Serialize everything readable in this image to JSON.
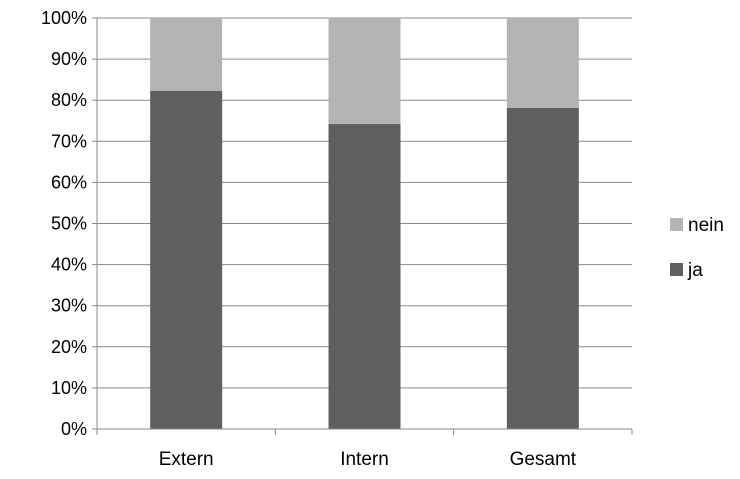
{
  "chart_data": {
    "type": "bar",
    "stacked": true,
    "normalized": true,
    "categories": [
      "Extern",
      "Intern",
      "Gesamt"
    ],
    "series": [
      {
        "name": "ja",
        "values": [
          82.3,
          74.2,
          78.1
        ],
        "color": "#5f5f5f"
      },
      {
        "name": "nein",
        "values": [
          17.7,
          25.8,
          21.9
        ],
        "color": "#b3b3b3"
      }
    ],
    "y_ticks": [
      "0%",
      "10%",
      "20%",
      "30%",
      "40%",
      "50%",
      "60%",
      "70%",
      "80%",
      "90%",
      "100%"
    ],
    "ylim": [
      0,
      100
    ],
    "grid": true,
    "legend": {
      "placement": "right",
      "entries": [
        "nein",
        "ja"
      ]
    },
    "title": "",
    "xlabel": "",
    "ylabel": ""
  }
}
